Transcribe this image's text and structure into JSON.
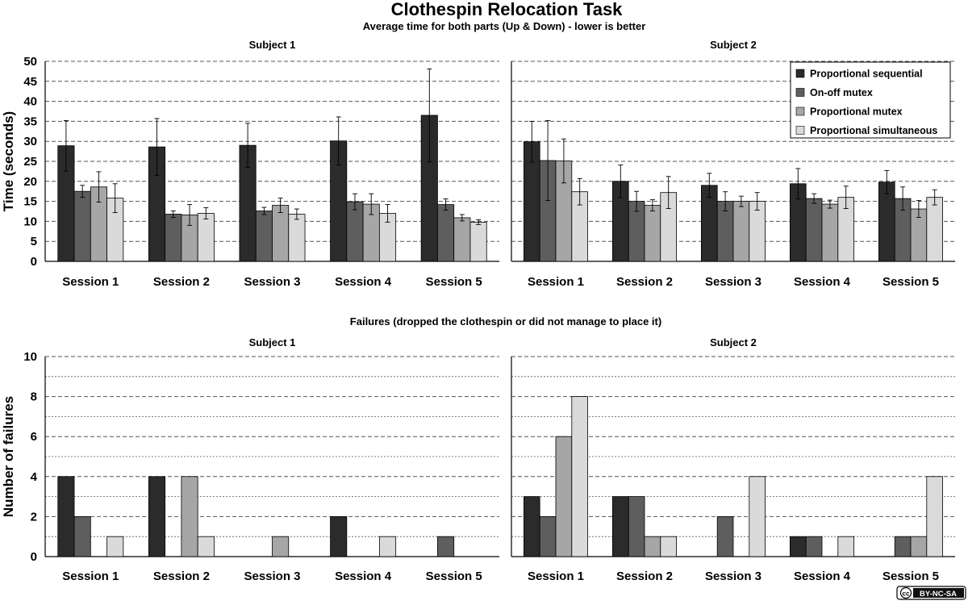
{
  "title": "Clothespin Relocation Task",
  "subtitle": "Average time for both parts (Up & Down) - lower is better",
  "failures_title": "Failures (dropped the clothespin or did not manage to place it)",
  "license": "BY-NC-SA",
  "license_icon_text": "cc",
  "colors": {
    "series": [
      "#2b2b2b",
      "#5e5e5e",
      "#a6a6a6",
      "#dadada"
    ],
    "grid": "#555555"
  },
  "chart_data": [
    {
      "type": "bar",
      "panel_title": "Subject 1",
      "ylabel": "Time (seconds)",
      "ylim": [
        0,
        50
      ],
      "yticks": [
        0,
        5,
        10,
        15,
        20,
        25,
        30,
        35,
        40,
        45,
        50
      ],
      "categories": [
        "Session 1",
        "Session 2",
        "Session 3",
        "Session 4",
        "Session 5"
      ],
      "series": [
        {
          "name": "Proportional sequential",
          "values": [
            28.9,
            28.6,
            29.0,
            30.1,
            36.5
          ],
          "errors": [
            6.3,
            7.1,
            5.5,
            6.0,
            11.6
          ]
        },
        {
          "name": "On-off mutex",
          "values": [
            17.5,
            11.8,
            12.6,
            14.9,
            14.2
          ],
          "errors": [
            1.5,
            0.8,
            0.9,
            2.0,
            1.4
          ]
        },
        {
          "name": "Proportional mutex",
          "values": [
            18.6,
            11.6,
            14.0,
            14.3,
            10.9
          ],
          "errors": [
            3.8,
            2.6,
            1.8,
            2.6,
            0.8
          ]
        },
        {
          "name": "Proportional simultaneous",
          "values": [
            15.8,
            12.0,
            11.8,
            12.0,
            9.8
          ],
          "errors": [
            3.6,
            1.4,
            1.3,
            2.2,
            0.6
          ]
        }
      ]
    },
    {
      "type": "bar",
      "panel_title": "Subject 2",
      "ylim": [
        0,
        50
      ],
      "yticks": [
        0,
        5,
        10,
        15,
        20,
        25,
        30,
        35,
        40,
        45,
        50
      ],
      "legend": "top-right",
      "categories": [
        "Session 1",
        "Session 2",
        "Session 3",
        "Session 4",
        "Session 5"
      ],
      "series": [
        {
          "name": "Proportional sequential",
          "values": [
            29.9,
            20.0,
            19.0,
            19.4,
            19.8
          ],
          "errors": [
            5.1,
            4.1,
            3.0,
            3.8,
            2.9
          ]
        },
        {
          "name": "On-off mutex",
          "values": [
            25.2,
            15.0,
            15.0,
            15.7,
            15.7
          ],
          "errors": [
            10.0,
            2.5,
            2.4,
            1.2,
            2.9
          ]
        },
        {
          "name": "Proportional mutex",
          "values": [
            25.1,
            14.0,
            15.0,
            14.3,
            13.1
          ],
          "errors": [
            5.5,
            1.4,
            1.3,
            1.0,
            2.1
          ]
        },
        {
          "name": "Proportional simultaneous",
          "values": [
            17.4,
            17.2,
            15.0,
            16.0,
            16.0
          ],
          "errors": [
            3.3,
            4.0,
            2.2,
            2.8,
            1.9
          ]
        }
      ]
    },
    {
      "type": "bar",
      "panel_title": "Subject 1",
      "ylabel": "Number of failures",
      "ylim": [
        0,
        10
      ],
      "yticks": [
        0,
        2,
        4,
        6,
        8,
        10
      ],
      "categories": [
        "Session 1",
        "Session 2",
        "Session 3",
        "Session 4",
        "Session 5"
      ],
      "series": [
        {
          "name": "Proportional sequential",
          "values": [
            4,
            4,
            0,
            2,
            0
          ]
        },
        {
          "name": "On-off mutex",
          "values": [
            2,
            0,
            0,
            0,
            1
          ]
        },
        {
          "name": "Proportional mutex",
          "values": [
            0,
            4,
            1,
            0,
            0
          ]
        },
        {
          "name": "Proportional simultaneous",
          "values": [
            1,
            1,
            0,
            1,
            0
          ]
        }
      ]
    },
    {
      "type": "bar",
      "panel_title": "Subject 2",
      "ylim": [
        0,
        10
      ],
      "yticks": [
        0,
        2,
        4,
        6,
        8,
        10
      ],
      "categories": [
        "Session 1",
        "Session 2",
        "Session 3",
        "Session 4",
        "Session 5"
      ],
      "series": [
        {
          "name": "Proportional sequential",
          "values": [
            3,
            3,
            0,
            1,
            0
          ]
        },
        {
          "name": "On-off mutex",
          "values": [
            2,
            3,
            2,
            1,
            1
          ]
        },
        {
          "name": "Proportional mutex",
          "values": [
            6,
            1,
            0,
            0,
            1
          ]
        },
        {
          "name": "Proportional simultaneous",
          "values": [
            8,
            1,
            4,
            1,
            4
          ]
        }
      ]
    }
  ]
}
